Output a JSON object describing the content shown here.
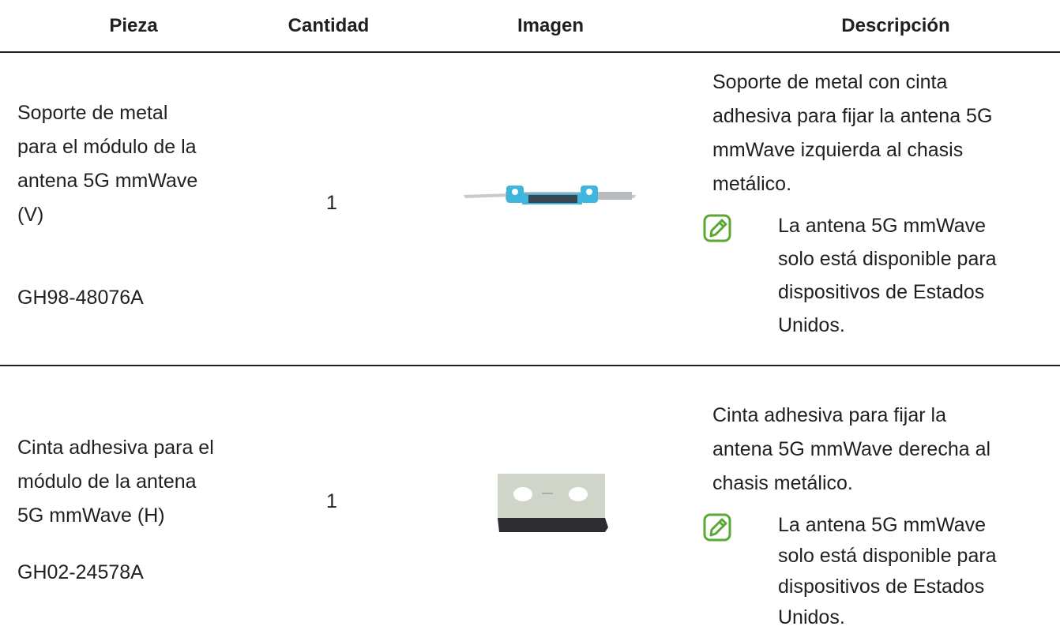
{
  "table": {
    "header": [
      "Pieza",
      "Cantidad",
      "Imagen",
      "Descripción"
    ],
    "rows": [
      {
        "pieza": [
          "Soporte de metal",
          "para el módulo de la",
          "antena 5G mmWave",
          "(V)"
        ],
        "code": "GH98-48076A",
        "cantidad": "1",
        "descripcion": [
          "Soporte de metal con cinta",
          "adhesiva para fijar la antena 5G",
          "mmWave izquierda al chasis",
          "metálico."
        ],
        "note": [
          "La antena 5G mmWave",
          "solo está disponible para",
          "dispositivos de Estados",
          "Unidos."
        ]
      },
      {
        "pieza": [
          "Cinta adhesiva para el",
          "módulo de la antena",
          "5G mmWave (H)"
        ],
        "code": "GH02-24578A",
        "cantidad": "1",
        "descripcion": [
          "Cinta adhesiva para fijar la",
          "antena 5G mmWave derecha al",
          "chasis metálico."
        ],
        "note": [
          "La antena 5G mmWave",
          "solo está disponible para",
          "dispositivos de Estados",
          "Unidos."
        ]
      }
    ]
  }
}
